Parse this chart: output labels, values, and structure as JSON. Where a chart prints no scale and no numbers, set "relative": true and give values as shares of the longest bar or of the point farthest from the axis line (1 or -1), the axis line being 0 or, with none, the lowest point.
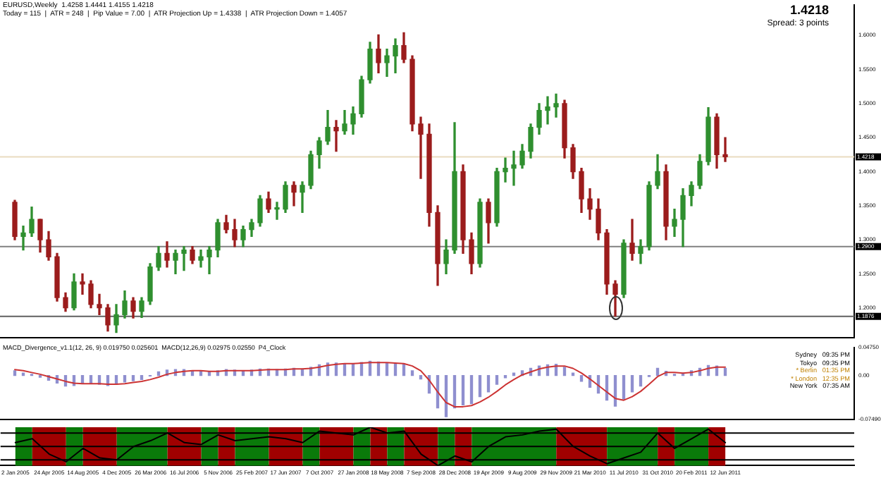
{
  "chart_data": [
    {
      "type": "candlestick",
      "title": "EURUSD,Weekly  1.4258 1.4441 1.4155 1.4218",
      "subtitle": "Today = 115  |  ATR = 248  |  Pip Value = 7.00  |  ATR Projection Up = 1.4338  |  ATR Projection Down = 1.4057",
      "annotations": [
        "1.4218",
        "Spread: 3 points"
      ],
      "x": [
        "2005-01-02",
        "2005-01-30",
        "2005-02-27",
        "2005-03-27",
        "2005-04-24",
        "2005-05-22",
        "2005-06-19",
        "2005-07-17",
        "2005-08-14",
        "2005-09-11",
        "2005-10-09",
        "2005-11-06",
        "2005-12-04",
        "2006-01-01",
        "2006-01-29",
        "2006-02-26",
        "2006-03-26",
        "2006-04-23",
        "2006-05-21",
        "2006-06-18",
        "2006-07-16",
        "2006-08-13",
        "2006-09-10",
        "2006-10-08",
        "2006-11-05",
        "2006-12-03",
        "2006-12-31",
        "2007-01-28",
        "2007-02-25",
        "2007-03-25",
        "2007-04-22",
        "2007-05-20",
        "2007-06-17",
        "2007-07-15",
        "2007-08-12",
        "2007-09-09",
        "2007-10-07",
        "2007-11-04",
        "2007-12-02",
        "2007-12-30",
        "2008-01-27",
        "2008-02-24",
        "2008-03-23",
        "2008-04-20",
        "2008-05-18",
        "2008-06-15",
        "2008-07-13",
        "2008-08-10",
        "2008-09-07",
        "2008-10-05",
        "2008-11-02",
        "2008-11-30",
        "2008-12-28",
        "2009-01-25",
        "2009-02-22",
        "2009-03-22",
        "2009-04-19",
        "2009-05-17",
        "2009-06-14",
        "2009-07-12",
        "2009-08-09",
        "2009-09-06",
        "2009-10-04",
        "2009-11-01",
        "2009-11-29",
        "2009-12-27",
        "2010-01-24",
        "2010-02-21",
        "2010-03-21",
        "2010-04-18",
        "2010-05-16",
        "2010-06-13",
        "2010-07-11",
        "2010-08-08",
        "2010-09-05",
        "2010-10-03",
        "2010-10-31",
        "2010-11-28",
        "2010-12-26",
        "2011-01-23",
        "2011-02-20",
        "2011-03-20",
        "2011-04-17",
        "2011-05-15",
        "2011-06-12"
      ],
      "ohlc": [
        [
          1.355,
          1.358,
          1.3,
          1.305
        ],
        [
          1.305,
          1.32,
          1.285,
          1.31
        ],
        [
          1.31,
          1.348,
          1.305,
          1.33
        ],
        [
          1.33,
          1.33,
          1.282,
          1.3
        ],
        [
          1.3,
          1.312,
          1.27,
          1.275
        ],
        [
          1.275,
          1.28,
          1.21,
          1.215
        ],
        [
          1.215,
          1.222,
          1.195,
          1.2
        ],
        [
          1.2,
          1.25,
          1.197,
          1.238
        ],
        [
          1.238,
          1.25,
          1.22,
          1.235
        ],
        [
          1.235,
          1.24,
          1.2,
          1.205
        ],
        [
          1.205,
          1.22,
          1.19,
          1.2
        ],
        [
          1.2,
          1.205,
          1.166,
          1.175
        ],
        [
          1.175,
          1.205,
          1.164,
          1.19
        ],
        [
          1.19,
          1.225,
          1.185,
          1.21
        ],
        [
          1.21,
          1.215,
          1.185,
          1.195
        ],
        [
          1.195,
          1.215,
          1.186,
          1.21
        ],
        [
          1.21,
          1.265,
          1.205,
          1.26
        ],
        [
          1.26,
          1.29,
          1.255,
          1.28
        ],
        [
          1.28,
          1.297,
          1.26,
          1.27
        ],
        [
          1.27,
          1.285,
          1.25,
          1.28
        ],
        [
          1.28,
          1.29,
          1.255,
          1.285
        ],
        [
          1.285,
          1.29,
          1.265,
          1.27
        ],
        [
          1.27,
          1.285,
          1.26,
          1.275
        ],
        [
          1.275,
          1.29,
          1.25,
          1.285
        ],
        [
          1.285,
          1.33,
          1.275,
          1.325
        ],
        [
          1.325,
          1.336,
          1.31,
          1.315
        ],
        [
          1.315,
          1.33,
          1.29,
          1.3
        ],
        [
          1.3,
          1.32,
          1.29,
          1.315
        ],
        [
          1.315,
          1.33,
          1.305,
          1.325
        ],
        [
          1.325,
          1.365,
          1.32,
          1.36
        ],
        [
          1.36,
          1.37,
          1.34,
          1.345
        ],
        [
          1.345,
          1.355,
          1.33,
          1.345
        ],
        [
          1.345,
          1.385,
          1.34,
          1.38
        ],
        [
          1.38,
          1.385,
          1.35,
          1.37
        ],
        [
          1.37,
          1.385,
          1.34,
          1.38
        ],
        [
          1.38,
          1.43,
          1.375,
          1.425
        ],
        [
          1.425,
          1.45,
          1.405,
          1.445
        ],
        [
          1.445,
          1.49,
          1.44,
          1.465
        ],
        [
          1.465,
          1.475,
          1.43,
          1.46
        ],
        [
          1.46,
          1.49,
          1.455,
          1.47
        ],
        [
          1.47,
          1.495,
          1.455,
          1.485
        ],
        [
          1.485,
          1.54,
          1.48,
          1.535
        ],
        [
          1.535,
          1.59,
          1.53,
          1.58
        ],
        [
          1.58,
          1.601,
          1.545,
          1.56
        ],
        [
          1.56,
          1.58,
          1.54,
          1.57
        ],
        [
          1.57,
          1.595,
          1.545,
          1.585
        ],
        [
          1.585,
          1.604,
          1.56,
          1.565
        ],
        [
          1.565,
          1.57,
          1.46,
          1.47
        ],
        [
          1.47,
          1.48,
          1.39,
          1.455
        ],
        [
          1.455,
          1.47,
          1.32,
          1.34
        ],
        [
          1.34,
          1.35,
          1.233,
          1.265
        ],
        [
          1.265,
          1.3,
          1.25,
          1.285
        ],
        [
          1.285,
          1.472,
          1.28,
          1.4
        ],
        [
          1.4,
          1.41,
          1.28,
          1.3
        ],
        [
          1.3,
          1.31,
          1.25,
          1.265
        ],
        [
          1.265,
          1.36,
          1.26,
          1.355
        ],
        [
          1.355,
          1.36,
          1.295,
          1.325
        ],
        [
          1.325,
          1.405,
          1.32,
          1.4
        ],
        [
          1.4,
          1.42,
          1.385,
          1.405
        ],
        [
          1.405,
          1.43,
          1.38,
          1.41
        ],
        [
          1.41,
          1.44,
          1.405,
          1.43
        ],
        [
          1.43,
          1.47,
          1.42,
          1.465
        ],
        [
          1.465,
          1.5,
          1.455,
          1.49
        ],
        [
          1.49,
          1.51,
          1.47,
          1.495
        ],
        [
          1.495,
          1.514,
          1.48,
          1.5
        ],
        [
          1.5,
          1.505,
          1.42,
          1.435
        ],
        [
          1.435,
          1.44,
          1.39,
          1.4
        ],
        [
          1.4,
          1.405,
          1.34,
          1.36
        ],
        [
          1.36,
          1.375,
          1.33,
          1.345
        ],
        [
          1.345,
          1.36,
          1.3,
          1.31
        ],
        [
          1.31,
          1.315,
          1.22,
          1.235
        ],
        [
          1.235,
          1.24,
          1.188,
          1.22
        ],
        [
          1.22,
          1.3,
          1.215,
          1.295
        ],
        [
          1.295,
          1.33,
          1.27,
          1.28
        ],
        [
          1.28,
          1.3,
          1.265,
          1.29
        ],
        [
          1.29,
          1.385,
          1.285,
          1.38
        ],
        [
          1.38,
          1.425,
          1.375,
          1.4
        ],
        [
          1.4,
          1.41,
          1.3,
          1.32
        ],
        [
          1.32,
          1.345,
          1.305,
          1.33
        ],
        [
          1.33,
          1.375,
          1.29,
          1.365
        ],
        [
          1.365,
          1.385,
          1.35,
          1.38
        ],
        [
          1.38,
          1.425,
          1.375,
          1.415
        ],
        [
          1.415,
          1.494,
          1.41,
          1.48
        ],
        [
          1.48,
          1.485,
          1.405,
          1.425
        ],
        [
          1.425,
          1.45,
          1.415,
          1.4218
        ]
      ],
      "xlim": [
        "2004-11-14",
        "2012-08-12"
      ],
      "ylim": [
        1.156,
        1.645
      ],
      "yticks": [
        {
          "value": 1.2,
          "label": "1.2000"
        },
        {
          "value": 1.25,
          "label": "1.2500"
        },
        {
          "value": 1.3,
          "label": "1.3000"
        },
        {
          "value": 1.35,
          "label": "1.3500"
        },
        {
          "value": 1.4,
          "label": "1.4000"
        },
        {
          "value": 1.45,
          "label": "1.4500"
        },
        {
          "value": 1.5,
          "label": "1.5000"
        },
        {
          "value": 1.55,
          "label": "1.5500"
        },
        {
          "value": 1.6,
          "label": "1.6000"
        }
      ],
      "ref_lines": [
        {
          "axis": "y",
          "value": 1.4218,
          "label": "1.4218",
          "color": "#eadcc0"
        },
        {
          "axis": "y",
          "value": 1.29,
          "label": "1.2900",
          "color": "#808080"
        },
        {
          "axis": "y",
          "value": 1.1876,
          "label": "1.1876",
          "color": "#606060"
        }
      ],
      "tick_labels": "y"
    },
    {
      "type": "bar",
      "title": "MACD_Divergence_v1.1(12, 26, 9) 0.019750 0.025601  MACD(12,26,9) 0.02975 0.02550  P4_Clock",
      "annotations": [
        "Sydney   09:35 PM",
        "Tokyo   09:35 PM",
        "* Berlin   01:35 PM",
        "* London   12:35 PM",
        "New York   07:35 AM"
      ],
      "x": [
        "2005-01-02",
        "2005-01-30",
        "2005-02-27",
        "2005-03-27",
        "2005-04-24",
        "2005-05-22",
        "2005-06-19",
        "2005-07-17",
        "2005-08-14",
        "2005-09-11",
        "2005-10-09",
        "2005-11-06",
        "2005-12-04",
        "2006-01-01",
        "2006-01-29",
        "2006-02-26",
        "2006-03-26",
        "2006-04-23",
        "2006-05-21",
        "2006-06-18",
        "2006-07-16",
        "2006-08-13",
        "2006-09-10",
        "2006-10-08",
        "2006-11-05",
        "2006-12-03",
        "2006-12-31",
        "2007-01-28",
        "2007-02-25",
        "2007-03-25",
        "2007-04-22",
        "2007-05-20",
        "2007-06-17",
        "2007-07-15",
        "2007-08-12",
        "2007-09-09",
        "2007-10-07",
        "2007-11-04",
        "2007-12-02",
        "2007-12-30",
        "2008-01-27",
        "2008-02-24",
        "2008-03-23",
        "2008-04-20",
        "2008-05-18",
        "2008-06-15",
        "2008-07-13",
        "2008-08-10",
        "2008-09-07",
        "2008-10-05",
        "2008-11-02",
        "2008-11-30",
        "2008-12-28",
        "2009-01-25",
        "2009-02-22",
        "2009-03-22",
        "2009-04-19",
        "2009-05-17",
        "2009-06-14",
        "2009-07-12",
        "2009-08-09",
        "2009-09-06",
        "2009-10-04",
        "2009-11-01",
        "2009-11-29",
        "2009-12-27",
        "2010-01-24",
        "2010-02-21",
        "2010-03-21",
        "2010-04-18",
        "2010-05-16",
        "2010-06-13",
        "2010-07-11",
        "2010-08-08",
        "2010-09-05",
        "2010-10-03",
        "2010-10-31",
        "2010-11-28",
        "2010-12-26",
        "2011-01-23",
        "2011-02-20",
        "2011-03-20",
        "2011-04-17",
        "2011-05-15",
        "2011-06-12"
      ],
      "series": [
        {
          "type": "bar",
          "color": "#8f8fcf",
          "values": [
            0.008,
            0.004,
            0.002,
            -0.003,
            -0.008,
            -0.013,
            -0.018,
            -0.017,
            -0.014,
            -0.013,
            -0.015,
            -0.017,
            -0.015,
            -0.011,
            -0.009,
            -0.007,
            -0.001,
            0.006,
            0.009,
            0.01,
            0.01,
            0.008,
            0.007,
            0.006,
            0.008,
            0.01,
            0.009,
            0.008,
            0.009,
            0.011,
            0.011,
            0.01,
            0.011,
            0.012,
            0.011,
            0.014,
            0.018,
            0.021,
            0.021,
            0.02,
            0.02,
            0.022,
            0.024,
            0.023,
            0.021,
            0.02,
            0.019,
            0.008,
            -0.006,
            -0.03,
            -0.055,
            -0.07,
            -0.055,
            -0.05,
            -0.048,
            -0.036,
            -0.028,
            -0.015,
            -0.004,
            0.004,
            0.008,
            0.012,
            0.016,
            0.018,
            0.019,
            0.014,
            0.004,
            -0.01,
            -0.02,
            -0.03,
            -0.042,
            -0.052,
            -0.04,
            -0.028,
            -0.018,
            -0.002,
            0.012,
            0.007,
            0.002,
            0.004,
            0.008,
            0.012,
            0.017,
            0.016,
            0.012
          ]
        },
        {
          "type": "line",
          "color": "#cc3333",
          "values": [
            0.01,
            0.008,
            0.005,
            0.002,
            -0.002,
            -0.006,
            -0.01,
            -0.013,
            -0.014,
            -0.014,
            -0.014,
            -0.015,
            -0.015,
            -0.014,
            -0.012,
            -0.01,
            -0.007,
            -0.003,
            0.002,
            0.005,
            0.007,
            0.008,
            0.008,
            0.007,
            0.007,
            0.008,
            0.008,
            0.008,
            0.008,
            0.009,
            0.01,
            0.01,
            0.01,
            0.011,
            0.011,
            0.012,
            0.014,
            0.017,
            0.019,
            0.02,
            0.02,
            0.021,
            0.022,
            0.022,
            0.022,
            0.021,
            0.02,
            0.016,
            0.008,
            -0.008,
            -0.028,
            -0.046,
            -0.053,
            -0.053,
            -0.051,
            -0.045,
            -0.037,
            -0.027,
            -0.016,
            -0.007,
            0.001,
            0.006,
            0.011,
            0.014,
            0.016,
            0.016,
            0.012,
            0.004,
            -0.006,
            -0.017,
            -0.028,
            -0.039,
            -0.042,
            -0.036,
            -0.027,
            -0.015,
            -0.002,
            0.005,
            0.005,
            0.004,
            0.005,
            0.008,
            0.012,
            0.014,
            0.014
          ]
        }
      ],
      "xlim": [
        "2004-11-14",
        "2012-08-12"
      ],
      "ylim": [
        -0.0749,
        0.0475
      ],
      "yticks": [
        {
          "value": 0.0475,
          "label": "0.04750"
        },
        {
          "value": 0,
          "label": "0.00"
        },
        {
          "value": -0.0749,
          "label": "-0.07490"
        }
      ],
      "tick_labels": "y"
    },
    {
      "type": "line",
      "relative": true,
      "series": [
        {
          "color": "#000000",
          "x": [
            "2005-01-02",
            "2005-02-27",
            "2005-04-24",
            "2005-06-19",
            "2005-08-14",
            "2005-10-09",
            "2005-12-04",
            "2006-01-29",
            "2006-03-26",
            "2006-05-21",
            "2006-07-16",
            "2006-09-10",
            "2006-11-05",
            "2006-12-31",
            "2007-02-25",
            "2007-04-22",
            "2007-06-17",
            "2007-08-12",
            "2007-10-07",
            "2007-12-02",
            "2008-01-27",
            "2008-03-23",
            "2008-05-18",
            "2008-07-13",
            "2008-09-07",
            "2008-11-02",
            "2008-12-28",
            "2009-02-22",
            "2009-04-19",
            "2009-06-14",
            "2009-08-09",
            "2009-10-04",
            "2009-11-29",
            "2010-01-24",
            "2010-03-21",
            "2010-05-16",
            "2010-07-11",
            "2010-09-05",
            "2010-10-31",
            "2010-12-26",
            "2011-02-20",
            "2011-04-17",
            "2011-06-12"
          ],
          "values": [
            0.6,
            0.7,
            0.3,
            0.1,
            0.45,
            0.2,
            0.15,
            0.5,
            0.65,
            0.85,
            0.6,
            0.55,
            0.8,
            0.65,
            0.7,
            0.75,
            0.7,
            0.6,
            0.9,
            0.85,
            0.8,
            1,
            0.85,
            0.9,
            0.3,
            0,
            0.25,
            0.1,
            0.5,
            0.75,
            0.8,
            0.9,
            0.95,
            0.5,
            0.25,
            0.05,
            0.2,
            0.35,
            0.85,
            0.45,
            0.7,
            0.95,
            0.6
          ]
        }
      ],
      "bands": [
        {
          "axis": "x",
          "from": "2005-01-02",
          "to": "2005-02-27",
          "color": "#0a7a0a"
        },
        {
          "axis": "x",
          "from": "2005-02-27",
          "to": "2005-06-19",
          "color": "#a00000"
        },
        {
          "axis": "x",
          "from": "2005-06-19",
          "to": "2005-08-14",
          "color": "#0a7a0a"
        },
        {
          "axis": "x",
          "from": "2005-08-14",
          "to": "2005-12-04",
          "color": "#a00000"
        },
        {
          "axis": "x",
          "from": "2005-12-04",
          "to": "2006-05-21",
          "color": "#0a7a0a"
        },
        {
          "axis": "x",
          "from": "2006-05-21",
          "to": "2006-09-10",
          "color": "#a00000"
        },
        {
          "axis": "x",
          "from": "2006-09-10",
          "to": "2006-11-05",
          "color": "#0a7a0a"
        },
        {
          "axis": "x",
          "from": "2006-11-05",
          "to": "2006-12-31",
          "color": "#a00000"
        },
        {
          "axis": "x",
          "from": "2006-12-31",
          "to": "2007-04-22",
          "color": "#0a7a0a"
        },
        {
          "axis": "x",
          "from": "2007-04-22",
          "to": "2007-08-12",
          "color": "#a00000"
        },
        {
          "axis": "x",
          "from": "2007-08-12",
          "to": "2007-10-07",
          "color": "#0a7a0a"
        },
        {
          "axis": "x",
          "from": "2007-10-07",
          "to": "2008-01-27",
          "color": "#a00000"
        },
        {
          "axis": "x",
          "from": "2008-01-27",
          "to": "2008-03-23",
          "color": "#0a7a0a"
        },
        {
          "axis": "x",
          "from": "2008-03-23",
          "to": "2008-05-18",
          "color": "#a00000"
        },
        {
          "axis": "x",
          "from": "2008-05-18",
          "to": "2008-07-13",
          "color": "#0a7a0a"
        },
        {
          "axis": "x",
          "from": "2008-07-13",
          "to": "2008-11-02",
          "color": "#a00000"
        },
        {
          "axis": "x",
          "from": "2008-11-02",
          "to": "2008-12-28",
          "color": "#0a7a0a"
        },
        {
          "axis": "x",
          "from": "2008-12-28",
          "to": "2009-02-22",
          "color": "#a00000"
        },
        {
          "axis": "x",
          "from": "2009-02-22",
          "to": "2009-11-29",
          "color": "#0a7a0a"
        },
        {
          "axis": "x",
          "from": "2009-11-29",
          "to": "2010-05-16",
          "color": "#a00000"
        },
        {
          "axis": "x",
          "from": "2010-05-16",
          "to": "2010-10-31",
          "color": "#0a7a0a"
        },
        {
          "axis": "x",
          "from": "2010-10-31",
          "to": "2010-12-26",
          "color": "#a00000"
        },
        {
          "axis": "x",
          "from": "2010-12-26",
          "to": "2011-04-17",
          "color": "#0a7a0a"
        },
        {
          "axis": "x",
          "from": "2011-04-17",
          "to": "2011-06-12",
          "color": "#a00000"
        }
      ],
      "ref_lines": [
        {
          "axis": "y",
          "value": 0.85,
          "color": "#000000"
        },
        {
          "axis": "y",
          "value": 0.5,
          "color": "#000000"
        },
        {
          "axis": "y",
          "value": 0.15,
          "color": "#000000"
        }
      ],
      "xlim": [
        "2004-11-14",
        "2012-08-12"
      ],
      "xticks": [
        {
          "value": "2005-01-02",
          "label": "2 Jan 2005"
        },
        {
          "value": "2005-04-24",
          "label": "24 Apr 2005"
        },
        {
          "value": "2005-08-14",
          "label": "14 Aug 2005"
        },
        {
          "value": "2005-12-04",
          "label": "4 Dec 2005"
        },
        {
          "value": "2006-03-26",
          "label": "26 Mar 2006"
        },
        {
          "value": "2006-07-16",
          "label": "16 Jul 2006"
        },
        {
          "value": "2006-11-05",
          "label": "5 Nov 2006"
        },
        {
          "value": "2007-02-25",
          "label": "25 Feb 2007"
        },
        {
          "value": "2007-06-17",
          "label": "17 Jun 2007"
        },
        {
          "value": "2007-10-07",
          "label": "7 Oct 2007"
        },
        {
          "value": "2008-01-27",
          "label": "27 Jan 2008"
        },
        {
          "value": "2008-05-18",
          "label": "18 May 2008"
        },
        {
          "value": "2008-09-07",
          "label": "7 Sep 2008"
        },
        {
          "value": "2008-12-28",
          "label": "28 Dec 2008"
        },
        {
          "value": "2009-04-19",
          "label": "19 Apr 2009"
        },
        {
          "value": "2009-08-09",
          "label": "9 Aug 2009"
        },
        {
          "value": "2009-11-29",
          "label": "29 Nov 2009"
        },
        {
          "value": "2010-03-21",
          "label": "21 Mar 2010"
        },
        {
          "value": "2010-07-11",
          "label": "11 Jul 2010"
        },
        {
          "value": "2010-10-31",
          "label": "31 Oct 2010"
        },
        {
          "value": "2011-02-20",
          "label": "20 Feb 2011"
        },
        {
          "value": "2011-06-12",
          "label": "12 Jun 2011"
        }
      ],
      "tick_labels": "x"
    }
  ]
}
